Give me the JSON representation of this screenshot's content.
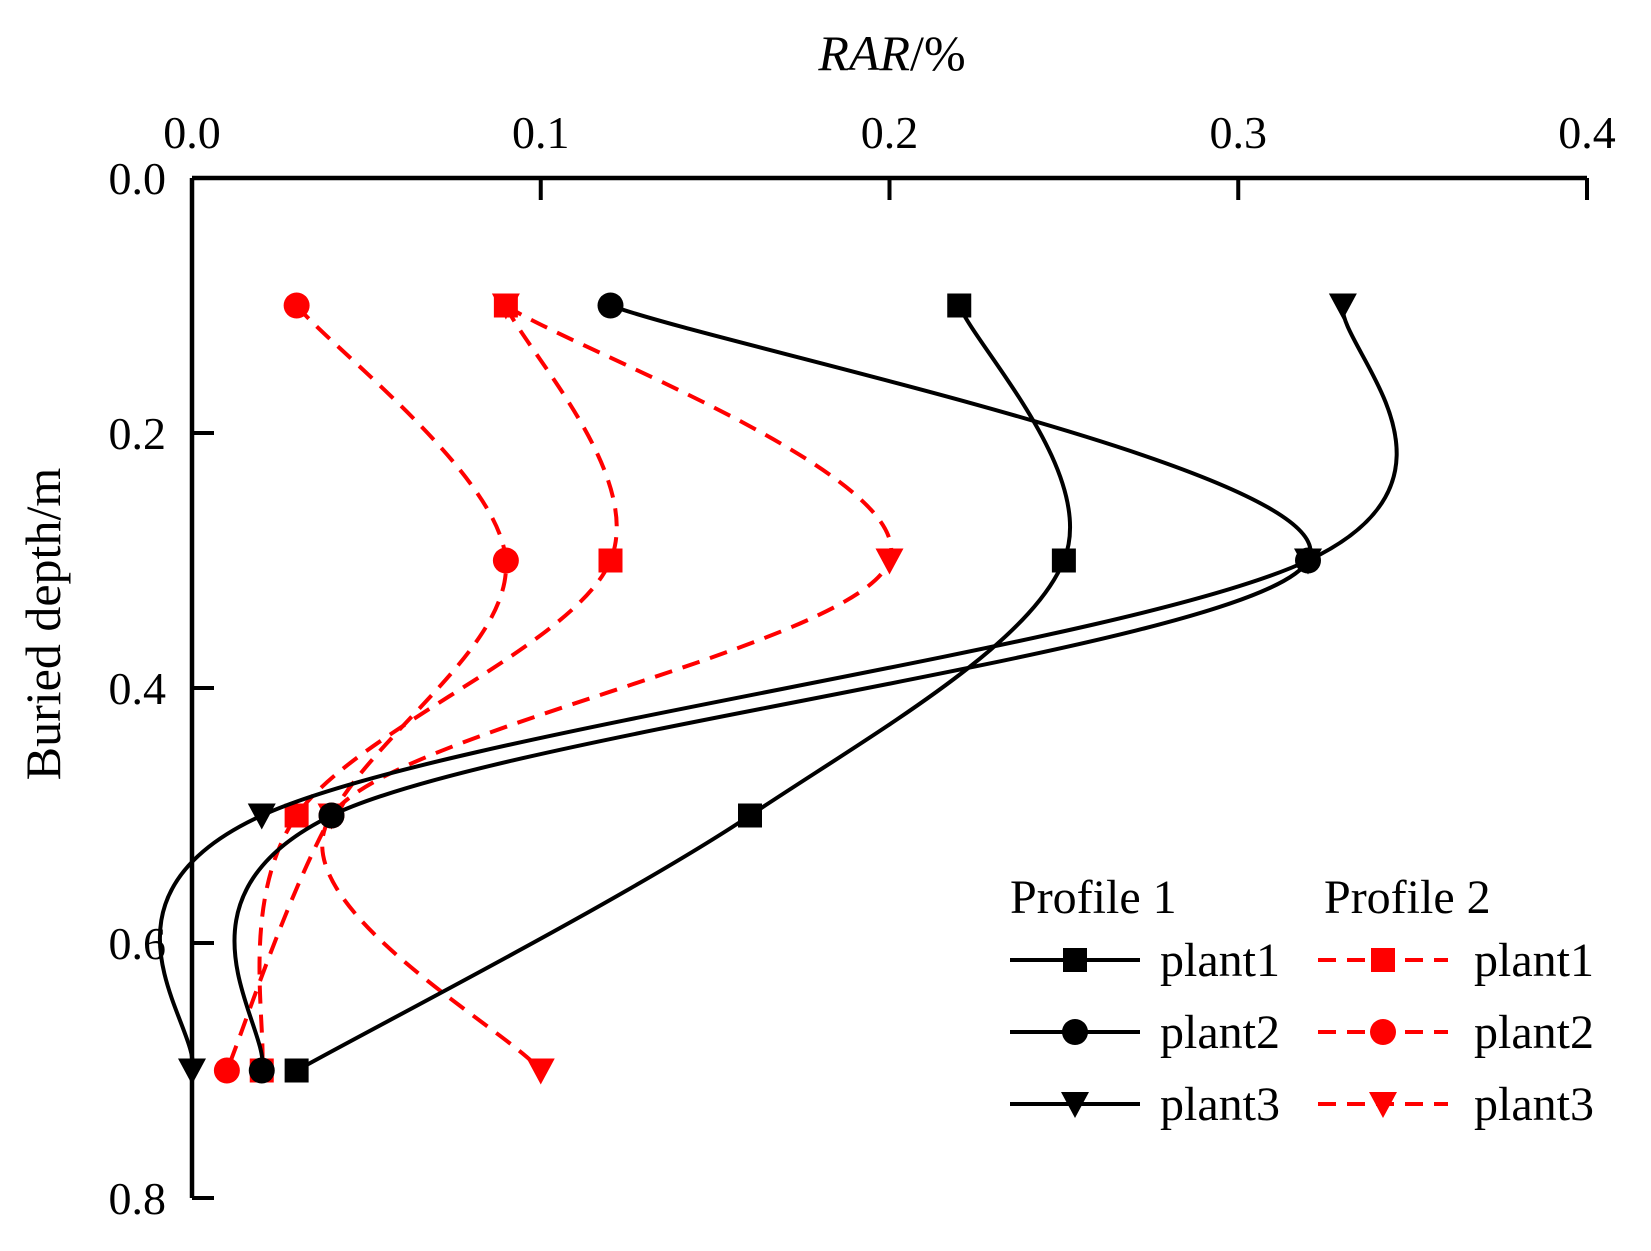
{
  "chart_data": {
    "type": "line",
    "orientation": "depth-profile",
    "xlabel": "RAR/%",
    "ylabel": "Buried depth/m",
    "xlim": [
      0.0,
      0.4
    ],
    "ylim": [
      0.0,
      0.8
    ],
    "xticks": [
      "0.0",
      "0.1",
      "0.2",
      "0.3",
      "0.4"
    ],
    "yticks": [
      "0.0",
      "0.2",
      "0.4",
      "0.6",
      "0.8"
    ],
    "grid": false,
    "legend_position": "bottom-right",
    "legend_groups": [
      "Profile 1",
      "Profile 2"
    ],
    "depths": [
      0.1,
      0.3,
      0.5,
      0.7
    ],
    "series": [
      {
        "name": "plant1",
        "group": "Profile 1",
        "color": "#000000",
        "dash": "solid",
        "marker": "square",
        "values": [
          0.22,
          0.25,
          0.16,
          0.03
        ]
      },
      {
        "name": "plant2",
        "group": "Profile 1",
        "color": "#000000",
        "dash": "solid",
        "marker": "circle",
        "values": [
          0.12,
          0.32,
          0.04,
          0.02
        ]
      },
      {
        "name": "plant3",
        "group": "Profile 1",
        "color": "#000000",
        "dash": "solid",
        "marker": "triangle-down",
        "values": [
          0.33,
          0.32,
          0.02,
          0.0
        ]
      },
      {
        "name": "plant1",
        "group": "Profile 2",
        "color": "#ff0000",
        "dash": "dashed",
        "marker": "square",
        "values": [
          0.09,
          0.12,
          0.03,
          0.02
        ]
      },
      {
        "name": "plant2",
        "group": "Profile 2",
        "color": "#ff0000",
        "dash": "dashed",
        "marker": "circle",
        "values": [
          0.03,
          0.09,
          0.04,
          0.01
        ]
      },
      {
        "name": "plant3",
        "group": "Profile 2",
        "color": "#ff0000",
        "dash": "dashed",
        "marker": "triangle-down",
        "values": [
          0.09,
          0.2,
          0.04,
          0.1
        ]
      }
    ]
  }
}
